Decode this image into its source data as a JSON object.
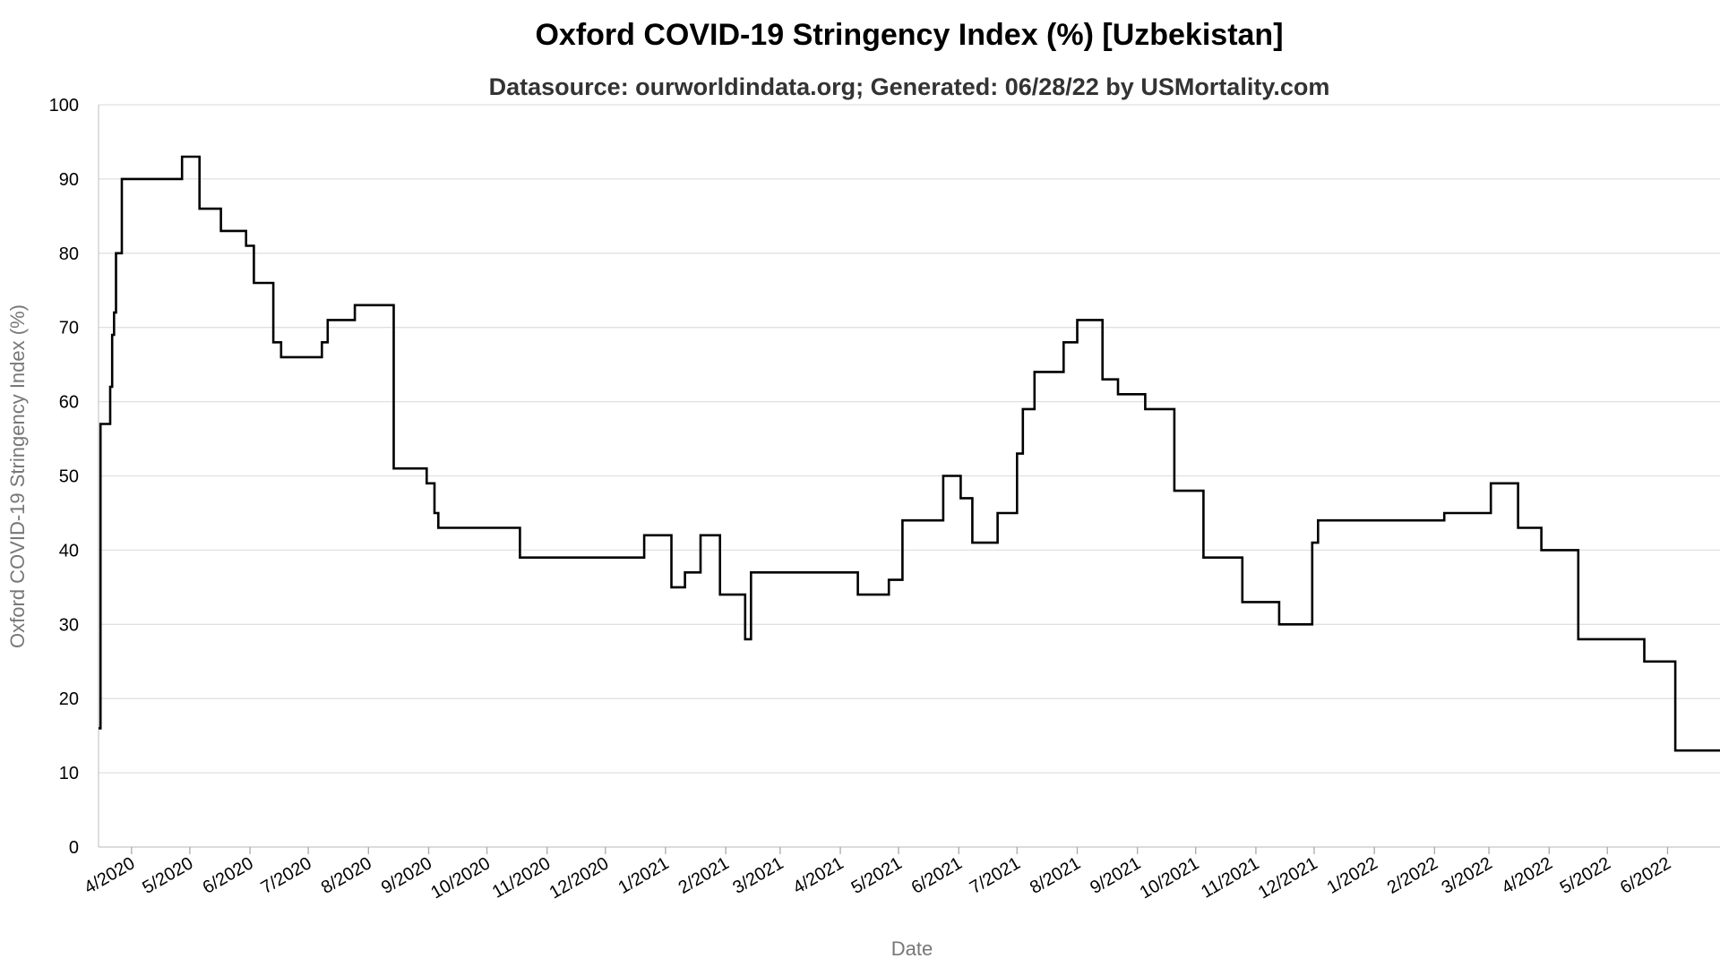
{
  "chart_data": {
    "type": "line",
    "title": "Oxford COVID-19 Stringency Index (%) [Uzbekistan]",
    "subtitle": "Datasource: ourworldindata.org; Generated: 06/28/22 by USMortality.com",
    "xlabel": "Date",
    "ylabel": "Oxford COVID-19 Stringency Index (%)",
    "ylim": [
      0,
      100
    ],
    "y_ticks": [
      0,
      10,
      20,
      30,
      40,
      50,
      60,
      70,
      80,
      90,
      100
    ],
    "xlim": [
      "2020-03-15",
      "2022-06-28"
    ],
    "x_ticks": [
      {
        "date": "2020-04-01",
        "label": "4/2020"
      },
      {
        "date": "2020-05-01",
        "label": "5/2020"
      },
      {
        "date": "2020-06-01",
        "label": "6/2020"
      },
      {
        "date": "2020-07-01",
        "label": "7/2020"
      },
      {
        "date": "2020-08-01",
        "label": "8/2020"
      },
      {
        "date": "2020-09-01",
        "label": "9/2020"
      },
      {
        "date": "2020-10-01",
        "label": "10/2020"
      },
      {
        "date": "2020-11-01",
        "label": "11/2020"
      },
      {
        "date": "2020-12-01",
        "label": "12/2020"
      },
      {
        "date": "2021-01-01",
        "label": "1/2021"
      },
      {
        "date": "2021-02-01",
        "label": "2/2021"
      },
      {
        "date": "2021-03-01",
        "label": "3/2021"
      },
      {
        "date": "2021-04-01",
        "label": "4/2021"
      },
      {
        "date": "2021-05-01",
        "label": "5/2021"
      },
      {
        "date": "2021-06-01",
        "label": "6/2021"
      },
      {
        "date": "2021-07-01",
        "label": "7/2021"
      },
      {
        "date": "2021-08-01",
        "label": "8/2021"
      },
      {
        "date": "2021-09-01",
        "label": "9/2021"
      },
      {
        "date": "2021-10-01",
        "label": "10/2021"
      },
      {
        "date": "2021-11-01",
        "label": "11/2021"
      },
      {
        "date": "2021-12-01",
        "label": "12/2021"
      },
      {
        "date": "2022-01-01",
        "label": "1/2022"
      },
      {
        "date": "2022-02-01",
        "label": "2/2022"
      },
      {
        "date": "2022-03-01",
        "label": "3/2022"
      },
      {
        "date": "2022-04-01",
        "label": "4/2022"
      },
      {
        "date": "2022-05-01",
        "label": "5/2022"
      },
      {
        "date": "2022-06-01",
        "label": "6/2022"
      }
    ],
    "grid": true,
    "legend": "none",
    "line_color": "#000000",
    "series": [
      {
        "step": true,
        "points": [
          [
            "2020-03-15",
            16
          ],
          [
            "2020-03-16",
            57
          ],
          [
            "2020-03-20",
            57
          ],
          [
            "2020-03-21",
            62
          ],
          [
            "2020-03-22",
            69
          ],
          [
            "2020-03-23",
            72
          ],
          [
            "2020-03-24",
            80
          ],
          [
            "2020-03-26",
            80
          ],
          [
            "2020-03-27",
            90
          ],
          [
            "2020-04-27",
            93
          ],
          [
            "2020-05-06",
            86
          ],
          [
            "2020-05-17",
            83
          ],
          [
            "2020-05-30",
            81
          ],
          [
            "2020-06-03",
            76
          ],
          [
            "2020-06-13",
            68
          ],
          [
            "2020-06-17",
            66
          ],
          [
            "2020-07-08",
            68
          ],
          [
            "2020-07-11",
            71
          ],
          [
            "2020-07-25",
            73
          ],
          [
            "2020-08-14",
            51
          ],
          [
            "2020-08-31",
            49
          ],
          [
            "2020-09-04",
            45
          ],
          [
            "2020-09-06",
            43
          ],
          [
            "2020-10-18",
            39
          ],
          [
            "2020-12-21",
            42
          ],
          [
            "2021-01-04",
            35
          ],
          [
            "2021-01-11",
            37
          ],
          [
            "2021-01-19",
            42
          ],
          [
            "2021-01-29",
            34
          ],
          [
            "2021-02-11",
            28
          ],
          [
            "2021-02-14",
            37
          ],
          [
            "2021-04-10",
            34
          ],
          [
            "2021-04-26",
            36
          ],
          [
            "2021-05-03",
            44
          ],
          [
            "2021-05-24",
            50
          ],
          [
            "2021-06-02",
            47
          ],
          [
            "2021-06-08",
            41
          ],
          [
            "2021-06-21",
            45
          ],
          [
            "2021-07-01",
            53
          ],
          [
            "2021-07-04",
            59
          ],
          [
            "2021-07-10",
            64
          ],
          [
            "2021-07-25",
            68
          ],
          [
            "2021-08-01",
            71
          ],
          [
            "2021-08-14",
            63
          ],
          [
            "2021-08-22",
            61
          ],
          [
            "2021-09-05",
            59
          ],
          [
            "2021-09-20",
            48
          ],
          [
            "2021-10-05",
            39
          ],
          [
            "2021-10-25",
            33
          ],
          [
            "2021-11-13",
            30
          ],
          [
            "2021-11-30",
            41
          ],
          [
            "2021-12-03",
            44
          ],
          [
            "2022-02-06",
            45
          ],
          [
            "2022-03-02",
            49
          ],
          [
            "2022-03-16",
            43
          ],
          [
            "2022-03-28",
            40
          ],
          [
            "2022-04-16",
            28
          ],
          [
            "2022-05-20",
            25
          ],
          [
            "2022-06-05",
            13
          ],
          [
            "2022-06-28",
            13
          ]
        ]
      }
    ]
  }
}
